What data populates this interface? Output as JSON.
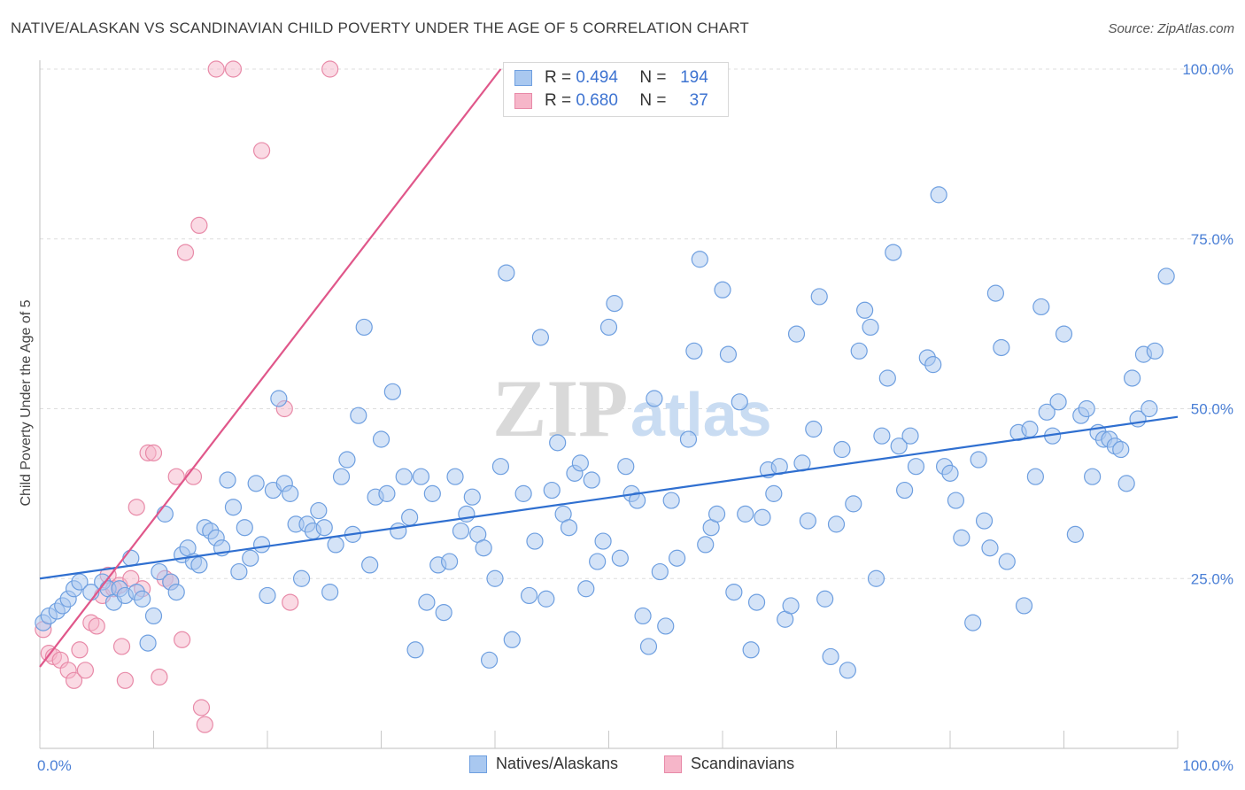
{
  "title": "NATIVE/ALASKAN VS SCANDINAVIAN CHILD POVERTY UNDER THE AGE OF 5 CORRELATION CHART",
  "source": "Source: ZipAtlas.com",
  "watermark": "ZIPatlas",
  "colors": {
    "blue_fill": "#a9c8f0",
    "blue_stroke": "#6e9fe0",
    "blue_line": "#2f6fd0",
    "pink_fill": "#f6b6c9",
    "pink_stroke": "#e88aa8",
    "pink_line": "#e0578a",
    "tick_text": "#4a7fd6",
    "grid": "#dddddd"
  },
  "legend": {
    "rows": [
      {
        "r_label": "R =",
        "r_value": "0.494",
        "n_label": "N =",
        "n_value": "194",
        "series": "blue"
      },
      {
        "r_label": "R =",
        "r_value": "0.680",
        "n_label": "N =",
        "n_value": "37",
        "series": "pink"
      }
    ]
  },
  "bottom_legend": [
    {
      "label": "Natives/Alaskans",
      "series": "blue"
    },
    {
      "label": "Scandinavians",
      "series": "pink"
    }
  ],
  "chart_data": {
    "type": "scatter",
    "title": "NATIVE/ALASKAN VS SCANDINAVIAN CHILD POVERTY UNDER THE AGE OF 5 CORRELATION CHART",
    "xlabel": "",
    "ylabel": "Child Poverty Under the Age of 5",
    "xlim": [
      0,
      100
    ],
    "ylim": [
      0,
      100
    ],
    "x_tick_labels": [
      "0.0%",
      "100.0%"
    ],
    "y_tick_labels": [
      {
        "value": 25,
        "label": "25.0%"
      },
      {
        "value": 50,
        "label": "50.0%"
      },
      {
        "value": 75,
        "label": "75.0%"
      },
      {
        "value": 100,
        "label": "100.0%"
      }
    ],
    "grid": true,
    "legend_position": "top-center",
    "series": [
      {
        "name": "Natives/Alaskans",
        "color": "blue",
        "trend": {
          "x": [
            0,
            100
          ],
          "y": [
            25,
            48.8
          ]
        },
        "points": [
          [
            0.3,
            18.5
          ],
          [
            0.8,
            19.5
          ],
          [
            1.5,
            20.2
          ],
          [
            2.0,
            21.0
          ],
          [
            2.5,
            22.0
          ],
          [
            3.0,
            23.5
          ],
          [
            3.5,
            24.5
          ],
          [
            4.5,
            23.0
          ],
          [
            5.5,
            24.5
          ],
          [
            6.0,
            23.5
          ],
          [
            6.5,
            21.5
          ],
          [
            7.0,
            23.5
          ],
          [
            7.5,
            22.5
          ],
          [
            8.0,
            28.0
          ],
          [
            8.5,
            23.0
          ],
          [
            9.0,
            22.0
          ],
          [
            9.5,
            15.5
          ],
          [
            10.0,
            19.5
          ],
          [
            10.5,
            26.0
          ],
          [
            11.0,
            34.5
          ],
          [
            11.5,
            24.5
          ],
          [
            12.0,
            23.0
          ],
          [
            12.5,
            28.5
          ],
          [
            13.0,
            29.5
          ],
          [
            13.5,
            27.5
          ],
          [
            14.0,
            27.0
          ],
          [
            14.5,
            32.5
          ],
          [
            15.0,
            32.0
          ],
          [
            15.5,
            31.0
          ],
          [
            16.0,
            29.5
          ],
          [
            16.5,
            39.5
          ],
          [
            17.0,
            35.5
          ],
          [
            17.5,
            26.0
          ],
          [
            18.0,
            32.5
          ],
          [
            18.5,
            28.0
          ],
          [
            19.0,
            39.0
          ],
          [
            19.5,
            30.0
          ],
          [
            20.0,
            22.5
          ],
          [
            20.5,
            38.0
          ],
          [
            21.0,
            51.5
          ],
          [
            21.5,
            39.0
          ],
          [
            22.0,
            37.5
          ],
          [
            22.5,
            33.0
          ],
          [
            23.0,
            25.0
          ],
          [
            23.5,
            33.0
          ],
          [
            24.0,
            32.0
          ],
          [
            24.5,
            35.0
          ],
          [
            25.0,
            32.5
          ],
          [
            25.5,
            23.0
          ],
          [
            26.0,
            30.0
          ],
          [
            26.5,
            40.0
          ],
          [
            27.0,
            42.5
          ],
          [
            27.5,
            31.5
          ],
          [
            28.0,
            49.0
          ],
          [
            28.5,
            62.0
          ],
          [
            29.0,
            27.0
          ],
          [
            29.5,
            37.0
          ],
          [
            30.0,
            45.5
          ],
          [
            30.5,
            37.5
          ],
          [
            31.0,
            52.5
          ],
          [
            31.5,
            32.0
          ],
          [
            32.0,
            40.0
          ],
          [
            32.5,
            34.0
          ],
          [
            33.0,
            14.5
          ],
          [
            33.5,
            40.0
          ],
          [
            34.0,
            21.5
          ],
          [
            34.5,
            37.5
          ],
          [
            35.0,
            27.0
          ],
          [
            35.5,
            20.0
          ],
          [
            36.0,
            27.5
          ],
          [
            36.5,
            40.0
          ],
          [
            37.0,
            32.0
          ],
          [
            37.5,
            34.5
          ],
          [
            38.0,
            37.0
          ],
          [
            38.5,
            31.5
          ],
          [
            39.0,
            29.5
          ],
          [
            39.5,
            13.0
          ],
          [
            40.0,
            25.0
          ],
          [
            40.5,
            41.5
          ],
          [
            41.0,
            70.0
          ],
          [
            41.5,
            16.0
          ],
          [
            42.5,
            37.5
          ],
          [
            43.0,
            22.5
          ],
          [
            43.5,
            30.5
          ],
          [
            44.0,
            60.5
          ],
          [
            44.5,
            22.0
          ],
          [
            45.0,
            38.0
          ],
          [
            45.5,
            45.0
          ],
          [
            46.0,
            34.5
          ],
          [
            46.5,
            32.5
          ],
          [
            47.0,
            40.5
          ],
          [
            47.5,
            42.0
          ],
          [
            48.0,
            23.5
          ],
          [
            48.5,
            39.5
          ],
          [
            49.0,
            27.5
          ],
          [
            49.5,
            30.5
          ],
          [
            50.0,
            62.0
          ],
          [
            50.5,
            65.5
          ],
          [
            51.0,
            28.0
          ],
          [
            51.5,
            41.5
          ],
          [
            52.0,
            37.5
          ],
          [
            52.5,
            36.5
          ],
          [
            53.0,
            19.5
          ],
          [
            53.5,
            15.0
          ],
          [
            54.0,
            51.5
          ],
          [
            54.5,
            26.0
          ],
          [
            55.0,
            18.0
          ],
          [
            55.5,
            36.5
          ],
          [
            56.0,
            28.0
          ],
          [
            57.0,
            45.5
          ],
          [
            57.5,
            58.5
          ],
          [
            58.0,
            72.0
          ],
          [
            58.5,
            30.0
          ],
          [
            59.0,
            32.5
          ],
          [
            59.5,
            34.5
          ],
          [
            60.0,
            67.5
          ],
          [
            60.5,
            58.0
          ],
          [
            61.0,
            23.0
          ],
          [
            61.5,
            51.0
          ],
          [
            62.0,
            34.5
          ],
          [
            62.5,
            14.5
          ],
          [
            63.0,
            21.5
          ],
          [
            63.5,
            34.0
          ],
          [
            64.0,
            41.0
          ],
          [
            64.5,
            37.5
          ],
          [
            65.0,
            41.5
          ],
          [
            65.5,
            19.0
          ],
          [
            66.0,
            21.0
          ],
          [
            66.5,
            61.0
          ],
          [
            67.0,
            42.0
          ],
          [
            67.5,
            33.5
          ],
          [
            68.0,
            47.0
          ],
          [
            68.5,
            66.5
          ],
          [
            69.0,
            22.0
          ],
          [
            69.5,
            13.5
          ],
          [
            70.0,
            33.0
          ],
          [
            70.5,
            44.0
          ],
          [
            71.0,
            11.5
          ],
          [
            71.5,
            36.0
          ],
          [
            72.0,
            58.5
          ],
          [
            72.5,
            64.5
          ],
          [
            73.0,
            62.0
          ],
          [
            73.5,
            25.0
          ],
          [
            74.0,
            46.0
          ],
          [
            74.5,
            54.5
          ],
          [
            75.0,
            73.0
          ],
          [
            75.5,
            44.5
          ],
          [
            76.0,
            38.0
          ],
          [
            76.5,
            46.0
          ],
          [
            77.0,
            41.5
          ],
          [
            78.0,
            57.5
          ],
          [
            78.5,
            56.5
          ],
          [
            79.0,
            81.5
          ],
          [
            79.5,
            41.5
          ],
          [
            80.0,
            40.5
          ],
          [
            80.5,
            36.5
          ],
          [
            81.0,
            31.0
          ],
          [
            82.0,
            18.5
          ],
          [
            82.5,
            42.5
          ],
          [
            83.0,
            33.5
          ],
          [
            83.5,
            29.5
          ],
          [
            84.0,
            67.0
          ],
          [
            84.5,
            59.0
          ],
          [
            85.0,
            27.5
          ],
          [
            86.0,
            46.5
          ],
          [
            86.5,
            21.0
          ],
          [
            87.0,
            47.0
          ],
          [
            87.5,
            40.0
          ],
          [
            88.0,
            65.0
          ],
          [
            88.5,
            49.5
          ],
          [
            89.0,
            46.0
          ],
          [
            89.5,
            51.0
          ],
          [
            90.0,
            61.0
          ],
          [
            91.0,
            31.5
          ],
          [
            91.5,
            49.0
          ],
          [
            92.0,
            50.0
          ],
          [
            92.5,
            40.0
          ],
          [
            93.0,
            46.5
          ],
          [
            93.5,
            45.5
          ],
          [
            94.0,
            45.5
          ],
          [
            94.5,
            44.5
          ],
          [
            95.0,
            44.0
          ],
          [
            95.5,
            39.0
          ],
          [
            96.0,
            54.5
          ],
          [
            96.5,
            48.5
          ],
          [
            97.0,
            58.0
          ],
          [
            97.5,
            50.0
          ],
          [
            98.0,
            58.5
          ],
          [
            99.0,
            69.5
          ]
        ]
      },
      {
        "name": "Scandinavians",
        "color": "pink",
        "trend": {
          "x": [
            0,
            40.5
          ],
          "y": [
            12,
            100
          ]
        },
        "points": [
          [
            0.3,
            17.5
          ],
          [
            0.8,
            14.0
          ],
          [
            1.2,
            13.5
          ],
          [
            1.8,
            13.0
          ],
          [
            2.5,
            11.5
          ],
          [
            3.0,
            10.0
          ],
          [
            3.5,
            14.5
          ],
          [
            4.0,
            11.5
          ],
          [
            4.5,
            18.5
          ],
          [
            5.0,
            18.0
          ],
          [
            5.5,
            22.5
          ],
          [
            6.0,
            25.5
          ],
          [
            6.5,
            23.5
          ],
          [
            7.0,
            24.0
          ],
          [
            7.2,
            15.0
          ],
          [
            7.5,
            10.0
          ],
          [
            8.0,
            25.0
          ],
          [
            8.5,
            35.5
          ],
          [
            9.0,
            23.5
          ],
          [
            9.5,
            43.5
          ],
          [
            10.0,
            43.5
          ],
          [
            10.5,
            10.5
          ],
          [
            11.0,
            25.0
          ],
          [
            11.5,
            24.5
          ],
          [
            12.0,
            40.0
          ],
          [
            12.5,
            16.0
          ],
          [
            12.8,
            73.0
          ],
          [
            13.5,
            40.0
          ],
          [
            14.0,
            77.0
          ],
          [
            14.2,
            6.0
          ],
          [
            14.5,
            3.5
          ],
          [
            15.5,
            100
          ],
          [
            17.0,
            100
          ],
          [
            19.5,
            88.0
          ],
          [
            21.5,
            50.0
          ],
          [
            22.0,
            21.5
          ],
          [
            25.5,
            100
          ]
        ]
      }
    ]
  }
}
